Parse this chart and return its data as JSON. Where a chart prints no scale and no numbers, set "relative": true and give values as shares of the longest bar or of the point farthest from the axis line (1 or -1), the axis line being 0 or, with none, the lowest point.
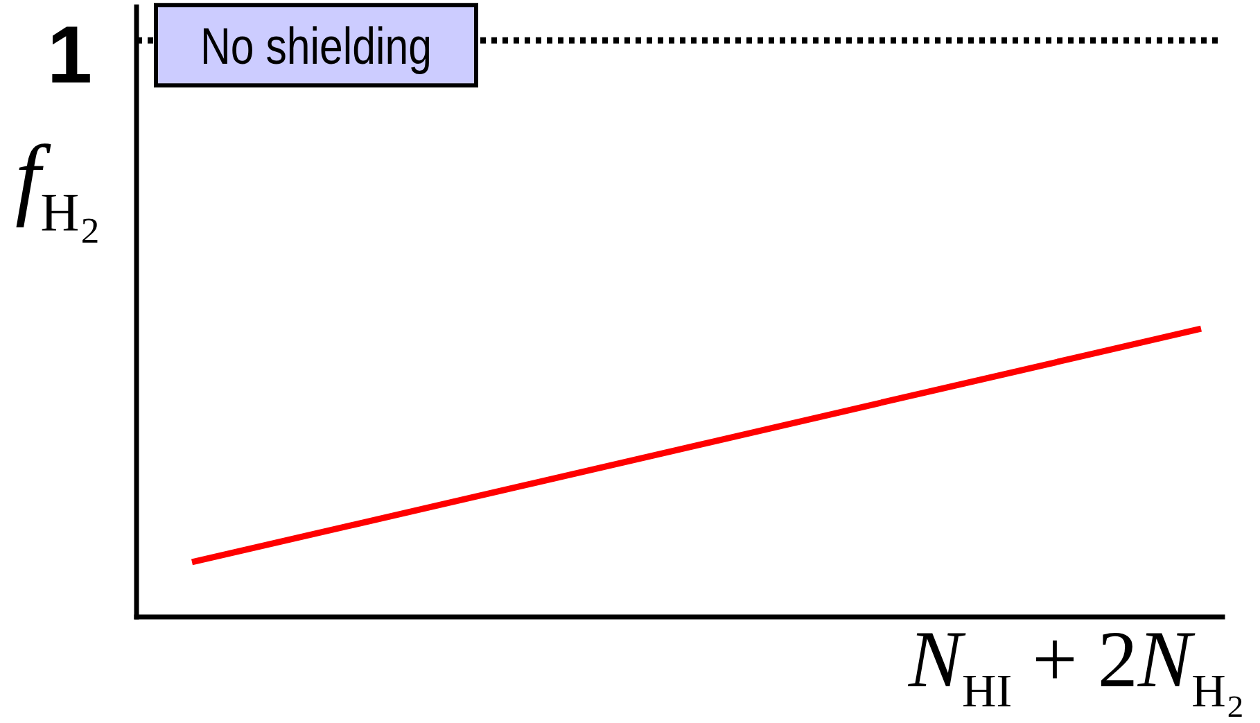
{
  "chart_data": {
    "type": "line",
    "relative": true,
    "xlabel": "N$_{HI}$ + 2N$_{H₂}$",
    "ylabel": "f$_{H₂}$",
    "categories": [
      null,
      null
    ],
    "series": [
      {
        "color": "#ff0000",
        "values": [
          0.19,
          1
        ]
      }
    ],
    "ref_lines": [
      {
        "axis": "y",
        "value": 2,
        "label": "No shielding",
        "line_style": "dotted",
        "color": "#000000"
      }
    ],
    "annotations": [
      "1"
    ]
  }
}
